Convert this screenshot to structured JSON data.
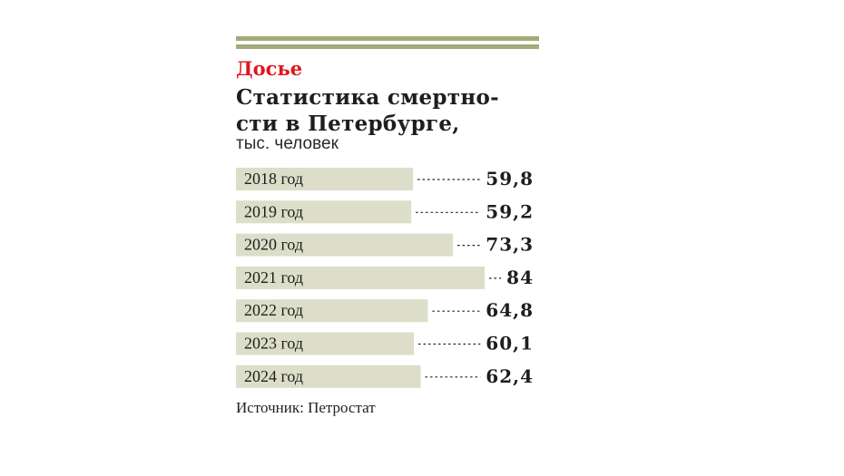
{
  "header": {
    "kicker": "Досье",
    "title_line1": "Статистика смертно-",
    "title_line2": "сти в Петербурге,",
    "unit": "тыс. человек"
  },
  "footer": {
    "source": "Источник: Петростат"
  },
  "colors": {
    "accent": "#e0161f",
    "rule": "#a4aa79",
    "bar": "#dcdec9",
    "text": "#1e1e1e"
  },
  "chart_data": {
    "type": "bar",
    "orientation": "horizontal",
    "categories": [
      "2018 год",
      "2019 год",
      "2020 год",
      "2021 год",
      "2022 год",
      "2023 год",
      "2024 год"
    ],
    "values": [
      59.8,
      59.2,
      73.3,
      84,
      64.8,
      60.1,
      62.4
    ],
    "value_labels": [
      "59,8",
      "59,2",
      "73,3",
      "84",
      "64,8",
      "60,1",
      "62,4"
    ],
    "grid": false,
    "legend": "none"
  }
}
